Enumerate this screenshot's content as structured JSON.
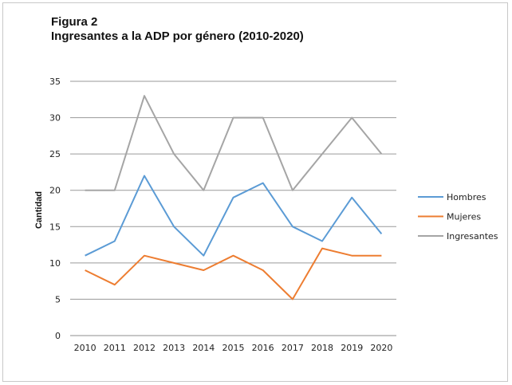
{
  "figure_label": "Figura 2",
  "title": "Ingresantes a la ADP por género (2010-2020)",
  "chart_data": {
    "type": "line",
    "title": "Ingresantes a la ADP por género (2010-2020)",
    "xlabel": "",
    "ylabel": "Cantidad",
    "categories": [
      "2010",
      "2011",
      "2012",
      "2013",
      "2014",
      "2015",
      "2016",
      "2017",
      "2018",
      "2019",
      "2020"
    ],
    "ylim": [
      0,
      35
    ],
    "yticks": [
      0,
      5,
      10,
      15,
      20,
      25,
      30,
      35
    ],
    "grid": true,
    "legend_position": "right",
    "series": [
      {
        "name": "Hombres",
        "color": "#5b9bd5",
        "values": [
          11,
          13,
          22,
          15,
          11,
          19,
          21,
          15,
          13,
          19,
          14
        ]
      },
      {
        "name": "Mujeres",
        "color": "#ed7d31",
        "values": [
          9,
          7,
          11,
          10,
          9,
          11,
          9,
          5,
          12,
          11,
          11
        ]
      },
      {
        "name": "Ingresantes",
        "color": "#a5a5a5",
        "values": [
          20,
          20,
          33,
          25,
          20,
          30,
          30,
          20,
          25,
          30,
          25
        ]
      }
    ]
  }
}
